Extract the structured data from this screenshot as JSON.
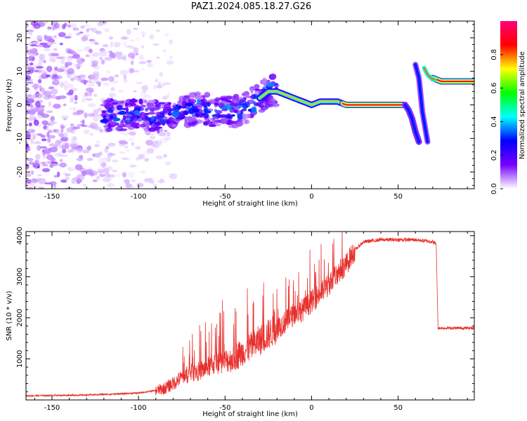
{
  "title": "PAZ1.2024.085.18.27.G26",
  "chart_data": [
    {
      "type": "heatmap",
      "xlabel": "Height of straight line (km)",
      "ylabel": "Frequency (Hz)",
      "xlim": [
        -165,
        94
      ],
      "ylim": [
        -25,
        25
      ],
      "xticks": [
        -150,
        -100,
        -50,
        0,
        50
      ],
      "yticks": [
        -20,
        -10,
        0,
        10,
        20
      ],
      "colorbar": {
        "label": "Normalized spectral amplitude",
        "range": [
          0.0,
          1.0
        ],
        "ticks": [
          0.0,
          0.2,
          0.4,
          0.6,
          0.8
        ],
        "tick_labels": [
          "0.0",
          "0.2",
          "0.4",
          "0.6",
          "0.8"
        ],
        "colormap": [
          "#ffffff",
          "#7700ff",
          "#0000ff",
          "#00ffff",
          "#00ff00",
          "#ffff00",
          "#ff0000",
          "#ff0077"
        ]
      },
      "ridge": {
        "x": [
          -95,
          -85,
          -75,
          -65,
          -55,
          -45,
          -38,
          -30,
          -25,
          -20,
          -15,
          -10,
          -5,
          0,
          5,
          10,
          15,
          20,
          30,
          40,
          50,
          54,
          58,
          62,
          66,
          70,
          75,
          85,
          94
        ],
        "y": [
          -3,
          -4,
          -2,
          -1,
          -2,
          -2,
          -1,
          2,
          4,
          4,
          3,
          2,
          1,
          0,
          1,
          1,
          1,
          0,
          0,
          0,
          0,
          0,
          -4,
          -10,
          11,
          8,
          7,
          7,
          7
        ]
      }
    },
    {
      "type": "line",
      "xlabel": "Height of straight line (km)",
      "ylabel": "SNR (10 * v/v)",
      "xlim": [
        -165,
        94
      ],
      "ylim": [
        0,
        4100
      ],
      "xticks": [
        -150,
        -100,
        -50,
        0,
        50
      ],
      "yticks": [
        1000,
        2000,
        3000,
        4000
      ],
      "color": "#e8302c",
      "x": [
        -165,
        -150,
        -130,
        -110,
        -100,
        -90,
        -85,
        -80,
        -75,
        -70,
        -65,
        -60,
        -55,
        -50,
        -45,
        -40,
        -35,
        -30,
        -25,
        -20,
        -15,
        -10,
        -5,
        0,
        5,
        10,
        15,
        20,
        25,
        30,
        40,
        50,
        60,
        70,
        72,
        73,
        80,
        94
      ],
      "y": [
        100,
        110,
        120,
        150,
        170,
        230,
        280,
        400,
        550,
        650,
        700,
        800,
        900,
        950,
        1000,
        1150,
        1300,
        1450,
        1600,
        1750,
        1900,
        2100,
        2200,
        2400,
        2600,
        2800,
        3100,
        3300,
        3650,
        3850,
        3900,
        3900,
        3900,
        3850,
        3800,
        1750,
        1750,
        1750
      ]
    }
  ]
}
